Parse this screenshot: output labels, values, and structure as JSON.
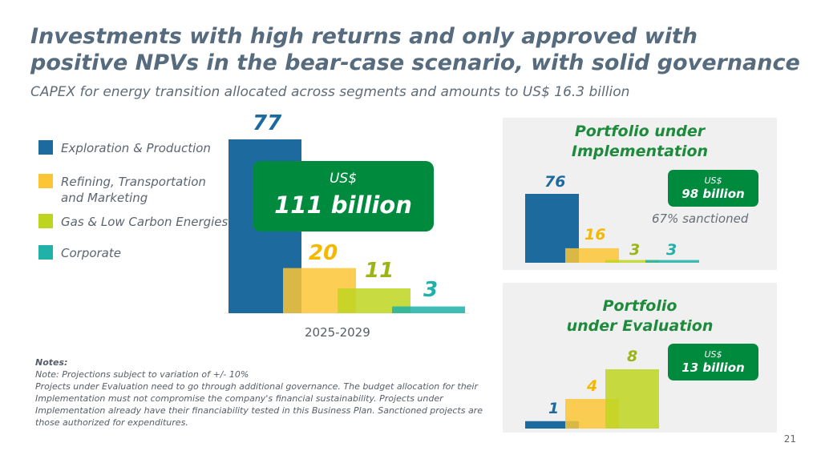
{
  "title": "Investments with high returns and only approved with positive NPVs in the bear-case scenario, with solid governance",
  "subtitle": "CAPEX for energy transition allocated across segments and amounts to US$ 16.3 billion",
  "legend": [
    {
      "label": "Exploration & Production",
      "color": "#1d6a9f"
    },
    {
      "label": "Refining, Transportation and Marketing",
      "color": "#fbc535"
    },
    {
      "label": "Gas & Low Carbon Energies",
      "color": "#bed520"
    },
    {
      "label": "Corporate",
      "color": "#20b1a8"
    }
  ],
  "total_box": {
    "currency": "US$",
    "amount": "111 billion"
  },
  "period": "2025-2029",
  "chart_data": [
    {
      "type": "bar",
      "title": "2025-2029",
      "categories": [
        "Exploration & Production",
        "Refining, Transportation and Marketing",
        "Gas & Low Carbon Energies",
        "Corporate"
      ],
      "values": [
        77,
        20,
        11,
        3
      ],
      "colors": [
        "#1d6a9f",
        "#fbc535",
        "#bed520",
        "#20b1a8"
      ],
      "ylim": [
        0,
        77
      ]
    },
    {
      "type": "bar",
      "title": "Portfolio under Implementation",
      "categories": [
        "Exploration & Production",
        "Refining, Transportation and Marketing",
        "Gas & Low Carbon Energies",
        "Corporate"
      ],
      "values": [
        76,
        16,
        3,
        3
      ],
      "colors": [
        "#1d6a9f",
        "#fbc535",
        "#bed520",
        "#20b1a8"
      ],
      "ylim": [
        0,
        76
      ]
    },
    {
      "type": "bar",
      "title": "Portfolio under Evaluation",
      "categories": [
        "Exploration & Production",
        "Refining, Transportation and Marketing",
        "Gas & Low Carbon Energies"
      ],
      "values": [
        1,
        4,
        8
      ],
      "colors": [
        "#1d6a9f",
        "#fbc535",
        "#bed520"
      ],
      "ylim": [
        0,
        8
      ]
    }
  ],
  "implementation": {
    "title_line1": "Portfolio under",
    "title_line2": "Implementation",
    "currency": "US$",
    "amount": "98 billion",
    "sanctioned": "67% sanctioned"
  },
  "evaluation": {
    "title_line1": "Portfolio",
    "title_line2": "under Evaluation",
    "currency": "US$",
    "amount": "13 billion"
  },
  "notes": {
    "header": "Notes:",
    "line1": "Note: Projections subject to variation of +/- 10%",
    "line2": "Projects under Evaluation need to go through additional governance. The budget allocation for their Implementation must not compromise the company's financial sustainability. Projects under Implementation already have their financiability tested in this Business Plan. Sanctioned projects are those authorized for expenditures."
  },
  "page_number": "21"
}
